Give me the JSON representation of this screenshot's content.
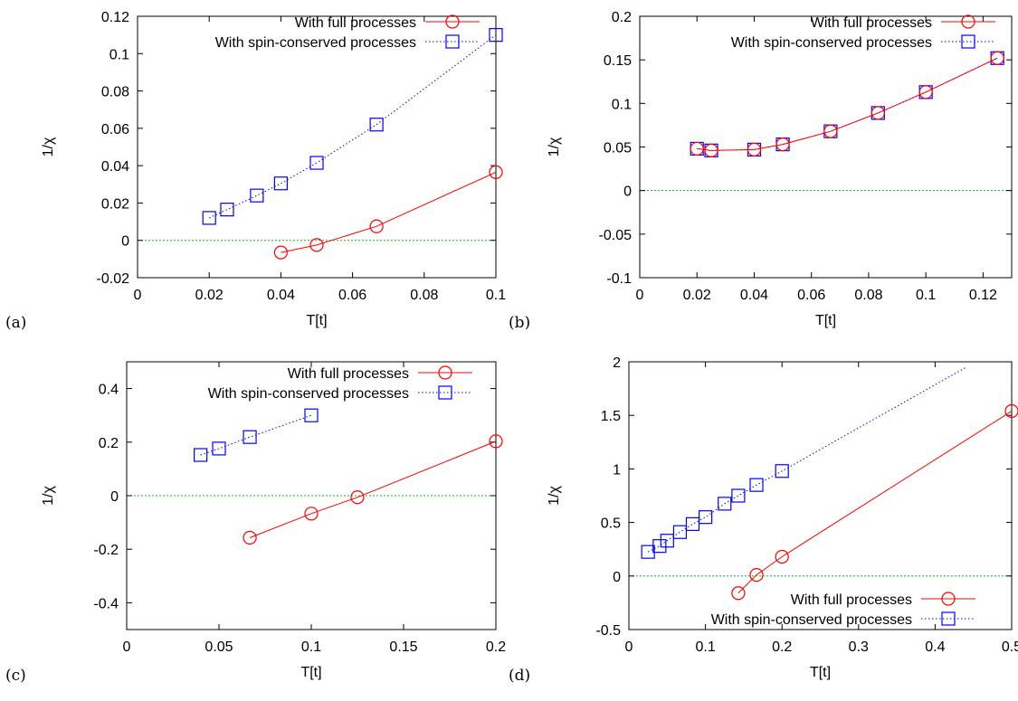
{
  "colors": {
    "full": "#ff0000",
    "spin": "#0000ff",
    "zero_line": "#00cc00",
    "axis": "#000000"
  },
  "chart_data": [
    {
      "id": "a",
      "panel_label": "(a)",
      "type": "line",
      "xlabel": "T[t]",
      "ylabel": "1/χ",
      "xlim": [
        0,
        0.1
      ],
      "ylim": [
        -0.02,
        0.12
      ],
      "xticks": [
        0,
        0.02,
        0.04,
        0.06,
        0.08,
        0.1
      ],
      "xtick_labels": [
        "0",
        "0.02",
        "0.04",
        "0.06",
        "0.08",
        "0.1"
      ],
      "yticks": [
        -0.02,
        0,
        0.02,
        0.04,
        0.06,
        0.08,
        0.1,
        0.12
      ],
      "ytick_labels": [
        "-0.02",
        "0",
        "0.02",
        "0.04",
        "0.06",
        "0.08",
        "0.1",
        "0.12"
      ],
      "legend_position": "top-right",
      "zero_line": true,
      "series": [
        {
          "name": "With full processes",
          "key": "full",
          "marker": "circle",
          "line": "solid",
          "x": [
            0.04,
            0.05,
            0.0667,
            0.1
          ],
          "y": [
            -0.0065,
            -0.0025,
            0.0075,
            0.0365
          ]
        },
        {
          "name": "With spin-conserved processes",
          "key": "spin",
          "marker": "square",
          "line": "dotted",
          "x": [
            0.02,
            0.025,
            0.0333,
            0.04,
            0.05,
            0.0667,
            0.1
          ],
          "y": [
            0.012,
            0.0165,
            0.024,
            0.0305,
            0.0415,
            0.062,
            0.11
          ]
        }
      ]
    },
    {
      "id": "b",
      "panel_label": "(b)",
      "type": "line",
      "xlabel": "T[t]",
      "ylabel": "1/χ",
      "xlim": [
        0,
        0.13
      ],
      "ylim": [
        -0.1,
        0.2
      ],
      "xticks": [
        0,
        0.02,
        0.04,
        0.06,
        0.08,
        0.1,
        0.12
      ],
      "xtick_labels": [
        "0",
        "0.02",
        "0.04",
        "0.06",
        "0.08",
        "0.1",
        "0.12"
      ],
      "yticks": [
        -0.1,
        -0.05,
        0,
        0.05,
        0.1,
        0.15,
        0.2
      ],
      "ytick_labels": [
        "-0.1",
        "-0.05",
        "0",
        "0.05",
        "0.1",
        "0.15",
        "0.2"
      ],
      "legend_position": "top-right",
      "zero_line": true,
      "series": [
        {
          "name": "With full processes",
          "key": "full",
          "marker": "circle",
          "line": "solid",
          "x": [
            0.02,
            0.025,
            0.04,
            0.05,
            0.0667,
            0.0833,
            0.1,
            0.125
          ],
          "y": [
            0.048,
            0.046,
            0.047,
            0.053,
            0.068,
            0.089,
            0.113,
            0.152
          ]
        },
        {
          "name": "With spin-conserved processes",
          "key": "spin",
          "marker": "square",
          "line": "dotted",
          "x": [
            0.02,
            0.025,
            0.04,
            0.05,
            0.0667,
            0.0833,
            0.1,
            0.125
          ],
          "y": [
            0.048,
            0.046,
            0.047,
            0.053,
            0.068,
            0.089,
            0.113,
            0.152
          ]
        }
      ]
    },
    {
      "id": "c",
      "panel_label": "(c)",
      "type": "line",
      "xlabel": "T[t]",
      "ylabel": "1/χ",
      "xlim": [
        0,
        0.2
      ],
      "ylim": [
        -0.5,
        0.5
      ],
      "xticks": [
        0,
        0.05,
        0.1,
        0.15,
        0.2
      ],
      "xtick_labels": [
        "0",
        "0.05",
        "0.1",
        "0.15",
        "0.2"
      ],
      "yticks": [
        -0.4,
        -0.2,
        0,
        0.2,
        0.4
      ],
      "ytick_labels": [
        "-0.4",
        "-0.2",
        "0",
        "0.2",
        "0.4"
      ],
      "legend_position": "top-right",
      "zero_line": true,
      "series": [
        {
          "name": "With full processes",
          "key": "full",
          "marker": "circle",
          "line": "solid",
          "x": [
            0.0667,
            0.1,
            0.125,
            0.2
          ],
          "y": [
            -0.157,
            -0.067,
            -0.006,
            0.203
          ]
        },
        {
          "name": "With spin-conserved processes",
          "key": "spin",
          "marker": "square",
          "line": "dotted",
          "x": [
            0.04,
            0.05,
            0.0667,
            0.1
          ],
          "y": [
            0.152,
            0.176,
            0.219,
            0.3
          ]
        }
      ]
    },
    {
      "id": "d",
      "panel_label": "(d)",
      "type": "line",
      "xlabel": "T[t]",
      "ylabel": "1/χ",
      "xlim": [
        0,
        0.5
      ],
      "ylim": [
        -0.5,
        2
      ],
      "xticks": [
        0,
        0.1,
        0.2,
        0.3,
        0.4,
        0.5
      ],
      "xtick_labels": [
        "0",
        "0.1",
        "0.2",
        "0.3",
        "0.4",
        "0.5"
      ],
      "yticks": [
        -0.5,
        0,
        0.5,
        1,
        1.5,
        2
      ],
      "ytick_labels": [
        "-0.5",
        "0",
        "0.5",
        "1",
        "1.5",
        "2"
      ],
      "legend_position": "bottom-right",
      "zero_line": true,
      "series": [
        {
          "name": "With full processes",
          "key": "full",
          "marker": "circle",
          "line": "solid",
          "x": [
            0.1429,
            0.1667,
            0.2,
            0.5
          ],
          "y": [
            -0.16,
            0.01,
            0.18,
            1.54
          ]
        },
        {
          "name": "With spin-conserved processes",
          "key": "spin",
          "marker": "square",
          "line": "dotted",
          "x": [
            0.025,
            0.04,
            0.05,
            0.0667,
            0.0833,
            0.1,
            0.125,
            0.1429,
            0.1667,
            0.2
          ],
          "y": [
            0.225,
            0.28,
            0.33,
            0.41,
            0.485,
            0.55,
            0.675,
            0.75,
            0.85,
            0.98
          ],
          "line_extends_to_x": 0.44
        }
      ]
    }
  ]
}
